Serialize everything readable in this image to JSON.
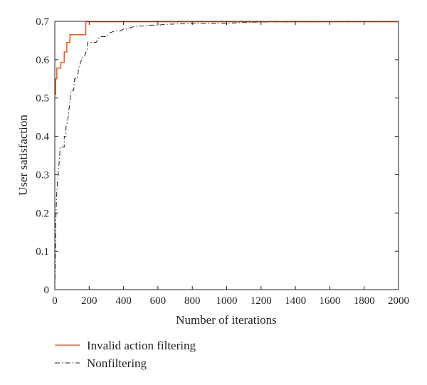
{
  "chart_data": {
    "type": "line",
    "xlabel": "Number of iterations",
    "ylabel": "User satisfaction",
    "xlim": [
      0,
      2000
    ],
    "ylim": [
      0,
      0.7
    ],
    "xticks": [
      "0",
      "200",
      "400",
      "600",
      "800",
      "1000",
      "1200",
      "1400",
      "1600",
      "1800",
      "2000"
    ],
    "yticks": [
      "0",
      "0.1",
      "0.2",
      "0.3",
      "0.4",
      "0.5",
      "0.6",
      "0.7"
    ],
    "grid": false,
    "legend_position": "below",
    "series": [
      {
        "name": "Invalid action filtering",
        "color": "#e8622c",
        "style": "solid",
        "x": [
          0,
          5,
          5,
          12,
          12,
          35,
          35,
          55,
          55,
          70,
          70,
          88,
          88,
          100,
          100,
          180,
          180,
          2000
        ],
        "y": [
          0.51,
          0.51,
          0.55,
          0.55,
          0.578,
          0.578,
          0.593,
          0.593,
          0.62,
          0.62,
          0.645,
          0.645,
          0.665,
          0.665,
          0.665,
          0.665,
          0.699,
          0.699
        ]
      },
      {
        "name": "Nonfiltering",
        "color": "#231f20",
        "style": "dash-dot",
        "x": [
          0,
          3,
          6,
          10,
          15,
          20,
          25,
          30,
          30,
          55,
          55,
          65,
          65,
          75,
          80,
          90,
          95,
          110,
          115,
          130,
          140,
          160,
          170,
          190,
          190,
          210,
          240,
          260,
          300,
          320,
          350,
          380,
          400,
          420,
          450,
          480,
          520,
          560,
          600,
          640,
          700,
          800,
          1000,
          1100,
          1200,
          2000
        ],
        "y": [
          0,
          0.08,
          0.18,
          0.24,
          0.28,
          0.3,
          0.33,
          0.36,
          0.372,
          0.372,
          0.4,
          0.4,
          0.425,
          0.44,
          0.46,
          0.5,
          0.52,
          0.52,
          0.55,
          0.55,
          0.58,
          0.605,
          0.605,
          0.63,
          0.645,
          0.645,
          0.645,
          0.66,
          0.66,
          0.67,
          0.675,
          0.675,
          0.68,
          0.68,
          0.685,
          0.688,
          0.688,
          0.69,
          0.69,
          0.692,
          0.693,
          0.695,
          0.695,
          0.697,
          0.698,
          0.699
        ]
      }
    ]
  }
}
